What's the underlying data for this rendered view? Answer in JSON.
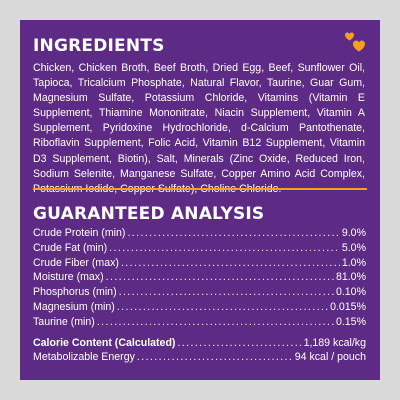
{
  "ingredients": {
    "heading": "INGREDIENTS",
    "text": "Chicken, Chicken Broth, Beef Broth, Dried Egg, Beef, Sunflower Oil, Tapioca, Tricalcium Phosphate, Natural Flavor, Taurine, Guar Gum, Magnesium Sulfate, Potassium Chloride, Vitamins (Vitamin E Supplement, Thiamine Mononitrate, Niacin Supplement, Vitamin A Supplement, Pyridoxine Hydrochloride, d-Calcium Pantothenate, Riboflavin Supplement, Folic Acid, Vitamin B12 Supplement, Vitamin D3 Supplement, Biotin), Salt, Minerals (Zinc Oxide, Reduced Iron, Sodium Selenite, Manganese Sulfate, Copper Amino Acid Complex, Potassium Iodide, Copper Sulfate), Choline Chloride."
  },
  "analysis": {
    "heading": "GUARANTEED ANALYSIS",
    "rows": [
      {
        "label": "Crude Protein (min)",
        "value": "9.0%"
      },
      {
        "label": "Crude Fat (min)",
        "value": "5.0%"
      },
      {
        "label": "Crude Fiber (max)",
        "value": "1.0%"
      },
      {
        "label": "Moisture (max)",
        "value": "81.0%"
      },
      {
        "label": "Phosphorus (min)",
        "value": "0.10%"
      },
      {
        "label": "Magnesium (min)",
        "value": "0.015%"
      },
      {
        "label": "Taurine (min)",
        "value": "0.15%"
      }
    ],
    "calorie": {
      "label": "Calorie Content (Calculated)",
      "value": "1,189 kcal/kg"
    },
    "energy": {
      "label": "Metabolizable Energy",
      "value": "94 kcal / pouch"
    }
  },
  "colors": {
    "panel": "#5d2b86",
    "accent": "#f5a01f",
    "background": "#d9d9d9"
  },
  "icons": [
    "hearts-icon"
  ]
}
